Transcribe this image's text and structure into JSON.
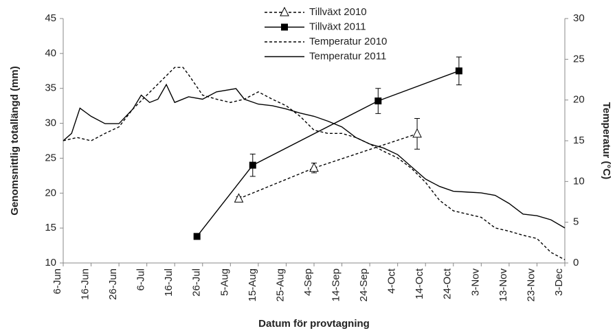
{
  "chart_data": {
    "type": "line",
    "x_label": "Datum för provtagning",
    "y_label": "Genomsnittlig totallängd (mm)",
    "y2_label": "Temperatur (°C)",
    "xlim": [
      "6-Jun",
      "3-Dec"
    ],
    "xticks": [
      "6-Jun",
      "16-Jun",
      "26-Jun",
      "6-Jul",
      "16-Jul",
      "26-Jul",
      "5-Aug",
      "15-Aug",
      "25-Aug",
      "4-Sep",
      "14-Sep",
      "24-Sep",
      "4-Oct",
      "14-Oct",
      "24-Oct",
      "3-Nov",
      "13-Nov",
      "23-Nov",
      "3-Dec"
    ],
    "ylim": [
      10,
      45
    ],
    "yticks": [
      10,
      15,
      20,
      25,
      30,
      35,
      40,
      45
    ],
    "y2lim": [
      0,
      30
    ],
    "y2ticks": [
      0,
      5,
      10,
      15,
      20,
      25,
      30
    ],
    "legend": "top",
    "series": [
      {
        "name": "Tillväxt 2010",
        "color": "#000000",
        "dash": true,
        "marker": "triangle",
        "x": [
          "8-Aug",
          "4-Sep",
          "11-Oct"
        ],
        "values": [
          19.2,
          23.6,
          28.5
        ],
        "errors": [
          0.3,
          0.7,
          2.2
        ]
      },
      {
        "name": "Tillväxt 2011",
        "color": "#000000",
        "dash": false,
        "marker": "square",
        "x": [
          "24-Jul",
          "13-Aug",
          "27-Sep",
          "26-Oct"
        ],
        "values": [
          13.8,
          24.0,
          33.2,
          37.5
        ],
        "errors": [
          0,
          1.6,
          1.8,
          2.0
        ]
      },
      {
        "name": "Temperatur 2010",
        "color": "#000000",
        "dash": true,
        "axis": "y2",
        "x": [
          "6-Jun",
          "11-Jun",
          "16-Jun",
          "21-Jun",
          "26-Jun",
          "1-Jul",
          "6-Jul",
          "11-Jul",
          "16-Jul",
          "19-Jul",
          "21-Jul",
          "26-Jul",
          "31-Jul",
          "5-Aug",
          "10-Aug",
          "15-Aug",
          "20-Aug",
          "25-Aug",
          "30-Aug",
          "4-Sep",
          "9-Sep",
          "14-Sep",
          "19-Sep",
          "24-Sep",
          "29-Sep",
          "4-Oct",
          "9-Oct",
          "14-Oct",
          "19-Oct",
          "24-Oct",
          "29-Oct",
          "3-Nov",
          "8-Nov",
          "13-Nov",
          "18-Nov",
          "23-Nov",
          "28-Nov",
          "3-Dec"
        ],
        "values": [
          15.0,
          15.4,
          15.0,
          15.9,
          16.7,
          18.9,
          20.6,
          22.3,
          24.0,
          24.0,
          23.1,
          20.6,
          20.1,
          19.7,
          20.1,
          21.0,
          20.1,
          19.3,
          18.0,
          16.3,
          15.9,
          15.9,
          15.4,
          14.6,
          13.7,
          12.9,
          11.6,
          9.9,
          7.7,
          6.4,
          6.0,
          5.6,
          4.3,
          3.9,
          3.4,
          3.0,
          1.3,
          0.4
        ]
      },
      {
        "name": "Temperatur 2011",
        "color": "#000000",
        "dash": false,
        "axis": "y2",
        "x": [
          "6-Jun",
          "9-Jun",
          "12-Jun",
          "16-Jun",
          "21-Jun",
          "26-Jun",
          "1-Jul",
          "4-Jul",
          "7-Jul",
          "10-Jul",
          "13-Jul",
          "16-Jul",
          "21-Jul",
          "26-Jul",
          "31-Jul",
          "7-Aug",
          "10-Aug",
          "15-Aug",
          "20-Aug",
          "25-Aug",
          "30-Aug",
          "4-Sep",
          "9-Sep",
          "14-Sep",
          "19-Sep",
          "24-Sep",
          "29-Sep",
          "4-Oct",
          "9-Oct",
          "14-Oct",
          "19-Oct",
          "24-Oct",
          "29-Oct",
          "3-Nov",
          "8-Nov",
          "13-Nov",
          "18-Nov",
          "23-Nov",
          "28-Nov",
          "3-Dec"
        ],
        "values": [
          15.0,
          15.9,
          19.0,
          18.0,
          17.1,
          17.1,
          18.9,
          20.6,
          19.7,
          20.1,
          21.9,
          19.7,
          20.4,
          20.1,
          21.0,
          21.4,
          20.1,
          19.5,
          19.3,
          18.9,
          18.4,
          18.0,
          17.4,
          16.7,
          15.4,
          14.6,
          14.1,
          13.3,
          11.8,
          10.3,
          9.4,
          8.8,
          8.7,
          8.6,
          8.3,
          7.3,
          6.0,
          5.8,
          5.3,
          4.3
        ]
      }
    ]
  }
}
